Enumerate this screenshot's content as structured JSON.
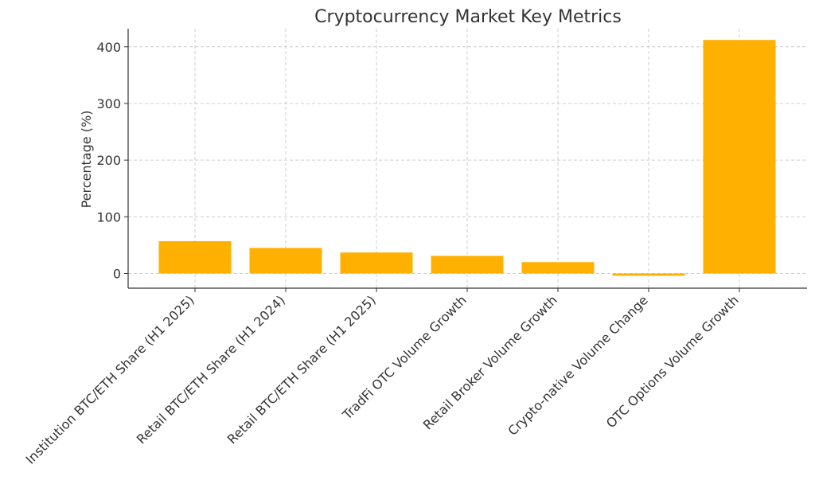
{
  "chart_data": {
    "type": "bar",
    "title": "Cryptocurrency Market Key Metrics",
    "xlabel": "",
    "ylabel": "Percentage (%)",
    "categories": [
      "Institution BTC/ETH Share (H1 2025)",
      "Retail BTC/ETH Share (H1 2024)",
      "Retail BTC/ETH Share (H1 2025)",
      "TradFi OTC Volume Growth",
      "Retail Broker Volume Growth",
      "Crypto-native Volume Change",
      "OTC Options Volume Growth"
    ],
    "values": [
      57,
      45,
      37,
      31,
      20,
      -4,
      412
    ],
    "ylim": [
      -26,
      432
    ],
    "yticks": [
      0,
      100,
      200,
      300,
      400
    ],
    "grid": true,
    "bar_color": "#FFB000"
  }
}
